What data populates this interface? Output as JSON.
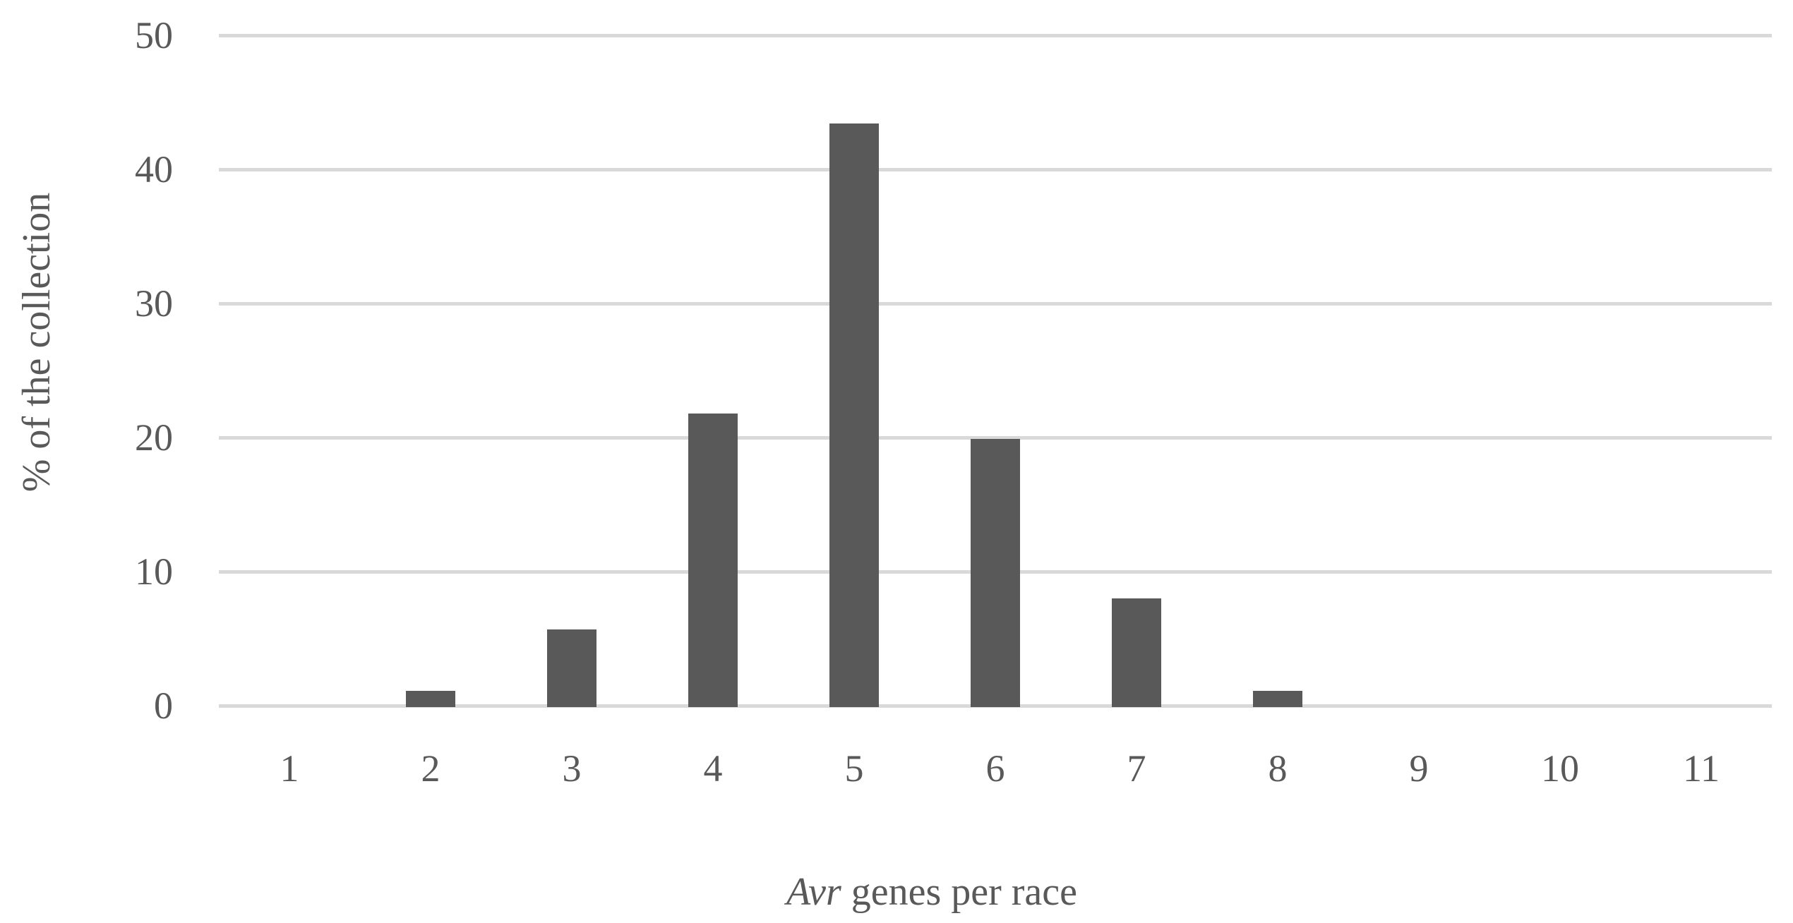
{
  "chart_data": {
    "type": "bar",
    "categories": [
      "1",
      "2",
      "3",
      "4",
      "5",
      "6",
      "7",
      "8",
      "9",
      "10",
      "11"
    ],
    "values": [
      0,
      1.1,
      5.7,
      21.8,
      43.4,
      19.9,
      8.0,
      1.1,
      0,
      0,
      0
    ],
    "title": "",
    "xlabel": "Avr genes per race",
    "xlabel_italic_part": "Avr",
    "xlabel_regular_part": " genes per race",
    "ylabel": "% of the collection",
    "ylim": [
      0,
      50
    ],
    "yticks": [
      0,
      10,
      20,
      30,
      40,
      50
    ],
    "grid": "horizontal",
    "legend": "none",
    "bar_color": "#595959",
    "gridline_color": "#d9d9d9",
    "text_color": "#595959",
    "background_color": "#ffffff"
  }
}
